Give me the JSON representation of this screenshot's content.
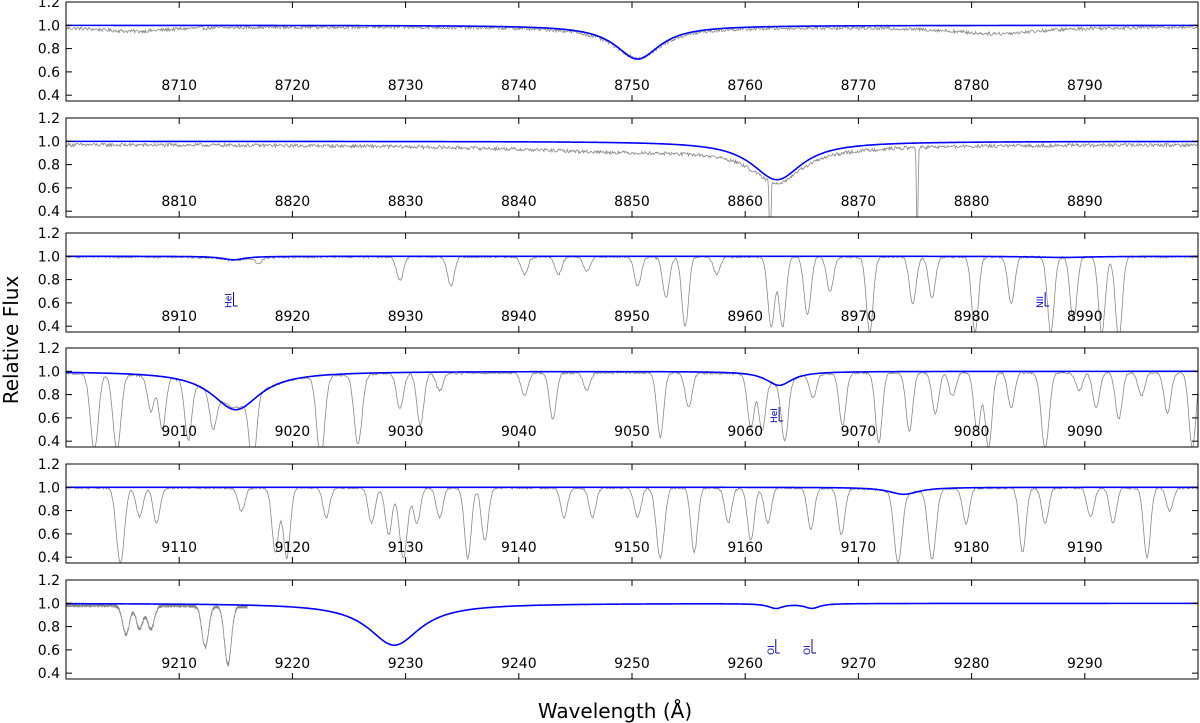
{
  "chart_data": {
    "type": "line",
    "xlabel": "Wavelength (Å)",
    "ylabel": "Relative Flux",
    "ylim": [
      0.35,
      1.2
    ],
    "yticks": [
      0.4,
      0.6,
      0.8,
      1.0,
      1.2
    ],
    "colors": {
      "model": "#0000ff",
      "observed": "#888888",
      "label": "#0000cc"
    },
    "panels": [
      {
        "xlim": [
          8700,
          8800
        ],
        "xticks": [
          8710,
          8720,
          8730,
          8740,
          8750,
          8760,
          8770,
          8780,
          8790
        ],
        "model_lines": [
          {
            "center": 8750.5,
            "depth": 0.29,
            "width": 2.4
          }
        ],
        "observed": {
          "broad": [
            {
              "center": 8750.5,
              "depth": 0.27,
              "width": 2.6
            },
            {
              "center": 8782,
              "depth": 0.06,
              "width": 5
            },
            {
              "center": 8706,
              "depth": 0.04,
              "width": 4
            }
          ],
          "narrow": [],
          "noise": 0.015,
          "offset": -0.02
        },
        "line_labels": []
      },
      {
        "xlim": [
          8800,
          8900
        ],
        "xticks": [
          8810,
          8820,
          8830,
          8840,
          8850,
          8860,
          8870,
          8880,
          8890
        ],
        "model_lines": [
          {
            "center": 8862.8,
            "depth": 0.33,
            "width": 2.7
          }
        ],
        "observed": {
          "broad": [
            {
              "center": 8862.8,
              "depth": 0.3,
              "width": 2.8
            },
            {
              "center": 8850,
              "depth": 0.06,
              "width": 14
            }
          ],
          "narrow": [
            {
              "center": 8862.2,
              "depth": 0.75,
              "width": 0.06
            },
            {
              "center": 8875.2,
              "depth": 0.9,
              "width": 0.06
            }
          ],
          "noise": 0.015,
          "offset": -0.05
        },
        "line_labels": []
      },
      {
        "xlim": [
          8900,
          9000
        ],
        "xticks": [
          8910,
          8920,
          8930,
          8940,
          8950,
          8960,
          8970,
          8980,
          8990
        ],
        "model_lines": [
          {
            "center": 8914.8,
            "depth": 0.03,
            "width": 1.2
          },
          {
            "center": 8988,
            "depth": 0.01,
            "width": 3
          }
        ],
        "observed": {
          "broad": [
            {
              "center": 8914.8,
              "depth": 0.03,
              "width": 1.2
            }
          ],
          "narrow": [
            {
              "center": 8929.5,
              "depth": 0.2,
              "width": 0.3
            },
            {
              "center": 8934,
              "depth": 0.25,
              "width": 0.3
            },
            {
              "center": 8940.5,
              "depth": 0.15,
              "width": 0.3
            },
            {
              "center": 8943.5,
              "depth": 0.15,
              "width": 0.3
            },
            {
              "center": 8946,
              "depth": 0.12,
              "width": 0.3
            },
            {
              "center": 8950.5,
              "depth": 0.25,
              "width": 0.3
            },
            {
              "center": 8953,
              "depth": 0.35,
              "width": 0.3
            },
            {
              "center": 8954.7,
              "depth": 0.6,
              "width": 0.3
            },
            {
              "center": 8957.5,
              "depth": 0.15,
              "width": 0.3
            },
            {
              "center": 8962.3,
              "depth": 0.6,
              "width": 0.3
            },
            {
              "center": 8963.3,
              "depth": 0.6,
              "width": 0.3
            },
            {
              "center": 8965.5,
              "depth": 0.5,
              "width": 0.3
            },
            {
              "center": 8967.5,
              "depth": 0.3,
              "width": 0.3
            },
            {
              "center": 8971,
              "depth": 0.65,
              "width": 0.3
            },
            {
              "center": 8974.8,
              "depth": 0.4,
              "width": 0.3
            },
            {
              "center": 8976.5,
              "depth": 0.35,
              "width": 0.3
            },
            {
              "center": 8980.3,
              "depth": 0.65,
              "width": 0.3
            },
            {
              "center": 8983.5,
              "depth": 0.4,
              "width": 0.3
            },
            {
              "center": 8987,
              "depth": 0.65,
              "width": 0.3
            },
            {
              "center": 8989,
              "depth": 0.55,
              "width": 0.3
            },
            {
              "center": 8991.5,
              "depth": 0.65,
              "width": 0.3
            },
            {
              "center": 8993,
              "depth": 0.7,
              "width": 0.3
            },
            {
              "center": 8917,
              "depth": 0.05,
              "width": 0.3
            }
          ],
          "noise": 0.01,
          "offset": -0.01
        },
        "line_labels": [
          {
            "x": 8914.8,
            "text": "HeI"
          },
          {
            "x": 8986.5,
            "text": "NII"
          }
        ]
      },
      {
        "xlim": [
          9000,
          9100
        ],
        "xticks": [
          9010,
          9020,
          9030,
          9040,
          9050,
          9060,
          9070,
          9080,
          9090
        ],
        "model_lines": [
          {
            "center": 9015,
            "depth": 0.33,
            "width": 2.6
          },
          {
            "center": 9063,
            "depth": 0.12,
            "width": 1.4
          }
        ],
        "observed": {
          "broad": [
            {
              "center": 9015,
              "depth": 0.3,
              "width": 2.6
            },
            {
              "center": 9063,
              "depth": 0.1,
              "width": 1.4
            }
          ],
          "narrow": [
            {
              "center": 9002.5,
              "depth": 0.65,
              "width": 0.35
            },
            {
              "center": 9004.5,
              "depth": 0.65,
              "width": 0.35
            },
            {
              "center": 9007.5,
              "depth": 0.3,
              "width": 0.3
            },
            {
              "center": 9008.5,
              "depth": 0.45,
              "width": 0.3
            },
            {
              "center": 9010.8,
              "depth": 0.5,
              "width": 0.3
            },
            {
              "center": 9013,
              "depth": 0.3,
              "width": 0.3
            },
            {
              "center": 9016.5,
              "depth": 0.6,
              "width": 0.3
            },
            {
              "center": 9022.5,
              "depth": 0.7,
              "width": 0.35
            },
            {
              "center": 9025.8,
              "depth": 0.6,
              "width": 0.35
            },
            {
              "center": 9029.5,
              "depth": 0.3,
              "width": 0.3
            },
            {
              "center": 9031.3,
              "depth": 0.45,
              "width": 0.3
            },
            {
              "center": 9033,
              "depth": 0.15,
              "width": 0.3
            },
            {
              "center": 9040.5,
              "depth": 0.2,
              "width": 0.3
            },
            {
              "center": 9043,
              "depth": 0.4,
              "width": 0.3
            },
            {
              "center": 9046,
              "depth": 0.15,
              "width": 0.3
            },
            {
              "center": 9052.5,
              "depth": 0.55,
              "width": 0.3
            },
            {
              "center": 9055,
              "depth": 0.3,
              "width": 0.3
            },
            {
              "center": 9060.5,
              "depth": 0.45,
              "width": 0.3
            },
            {
              "center": 9061.5,
              "depth": 0.45,
              "width": 0.3
            },
            {
              "center": 9063.5,
              "depth": 0.5,
              "width": 0.3
            },
            {
              "center": 9066,
              "depth": 0.2,
              "width": 0.3
            },
            {
              "center": 9068.6,
              "depth": 0.45,
              "width": 0.3
            },
            {
              "center": 9071.8,
              "depth": 0.6,
              "width": 0.3
            },
            {
              "center": 9074.5,
              "depth": 0.5,
              "width": 0.3
            },
            {
              "center": 9076.8,
              "depth": 0.35,
              "width": 0.3
            },
            {
              "center": 9078.3,
              "depth": 0.2,
              "width": 0.3
            },
            {
              "center": 9080.5,
              "depth": 0.5,
              "width": 0.3
            },
            {
              "center": 9081.5,
              "depth": 0.65,
              "width": 0.3
            },
            {
              "center": 9083.5,
              "depth": 0.3,
              "width": 0.3
            },
            {
              "center": 9086.5,
              "depth": 0.65,
              "width": 0.35
            },
            {
              "center": 9089.5,
              "depth": 0.15,
              "width": 0.3
            },
            {
              "center": 9091,
              "depth": 0.3,
              "width": 0.3
            },
            {
              "center": 9093,
              "depth": 0.4,
              "width": 0.3
            },
            {
              "center": 9095,
              "depth": 0.2,
              "width": 0.3
            },
            {
              "center": 9097.3,
              "depth": 0.35,
              "width": 0.3
            },
            {
              "center": 9099.5,
              "depth": 0.65,
              "width": 0.3
            }
          ],
          "noise": 0.01,
          "offset": -0.02
        },
        "line_labels": [
          {
            "x": 9063,
            "text": "HeI"
          }
        ]
      },
      {
        "xlim": [
          9100,
          9200
        ],
        "xticks": [
          9110,
          9120,
          9130,
          9140,
          9150,
          9160,
          9170,
          9180,
          9190
        ],
        "model_lines": [
          {
            "center": 9174,
            "depth": 0.06,
            "width": 1.6
          }
        ],
        "observed": {
          "broad": [
            {
              "center": 9174,
              "depth": 0.05,
              "width": 1.6
            }
          ],
          "narrow": [
            {
              "center": 9104.8,
              "depth": 0.65,
              "width": 0.35
            },
            {
              "center": 9106.5,
              "depth": 0.25,
              "width": 0.3
            },
            {
              "center": 9108,
              "depth": 0.3,
              "width": 0.3
            },
            {
              "center": 9115.5,
              "depth": 0.2,
              "width": 0.3
            },
            {
              "center": 9118.5,
              "depth": 0.55,
              "width": 0.3
            },
            {
              "center": 9119.5,
              "depth": 0.6,
              "width": 0.3
            },
            {
              "center": 9123,
              "depth": 0.25,
              "width": 0.3
            },
            {
              "center": 9127,
              "depth": 0.3,
              "width": 0.3
            },
            {
              "center": 9128.5,
              "depth": 0.4,
              "width": 0.3
            },
            {
              "center": 9129.8,
              "depth": 0.6,
              "width": 0.35
            },
            {
              "center": 9131,
              "depth": 0.3,
              "width": 0.3
            },
            {
              "center": 9133,
              "depth": 0.25,
              "width": 0.3
            },
            {
              "center": 9135.5,
              "depth": 0.6,
              "width": 0.3
            },
            {
              "center": 9137,
              "depth": 0.45,
              "width": 0.3
            },
            {
              "center": 9144,
              "depth": 0.25,
              "width": 0.3
            },
            {
              "center": 9146.5,
              "depth": 0.25,
              "width": 0.3
            },
            {
              "center": 9150.5,
              "depth": 0.25,
              "width": 0.3
            },
            {
              "center": 9152.5,
              "depth": 0.6,
              "width": 0.35
            },
            {
              "center": 9155.5,
              "depth": 0.55,
              "width": 0.3
            },
            {
              "center": 9158.5,
              "depth": 0.3,
              "width": 0.3
            },
            {
              "center": 9160.5,
              "depth": 0.45,
              "width": 0.3
            },
            {
              "center": 9162,
              "depth": 0.3,
              "width": 0.3
            },
            {
              "center": 9165.8,
              "depth": 0.35,
              "width": 0.3
            },
            {
              "center": 9168.5,
              "depth": 0.4,
              "width": 0.3
            },
            {
              "center": 9173.5,
              "depth": 0.6,
              "width": 0.35
            },
            {
              "center": 9176.5,
              "depth": 0.6,
              "width": 0.35
            },
            {
              "center": 9179.5,
              "depth": 0.3,
              "width": 0.3
            },
            {
              "center": 9184.5,
              "depth": 0.55,
              "width": 0.3
            },
            {
              "center": 9186.5,
              "depth": 0.3,
              "width": 0.3
            },
            {
              "center": 9190.5,
              "depth": 0.25,
              "width": 0.3
            },
            {
              "center": 9192.5,
              "depth": 0.3,
              "width": 0.3
            },
            {
              "center": 9195.5,
              "depth": 0.6,
              "width": 0.3
            },
            {
              "center": 9197.5,
              "depth": 0.2,
              "width": 0.3
            }
          ],
          "noise": 0.01,
          "offset": -0.01
        },
        "line_labels": []
      },
      {
        "xlim": [
          9200,
          9300
        ],
        "xticks": [
          9210,
          9220,
          9230,
          9240,
          9250,
          9260,
          9270,
          9280,
          9290
        ],
        "model_lines": [
          {
            "center": 9229,
            "depth": 0.36,
            "width": 2.8
          },
          {
            "center": 9262.7,
            "depth": 0.04,
            "width": 0.8
          },
          {
            "center": 9265.9,
            "depth": 0.04,
            "width": 0.8
          }
        ],
        "observed": {
          "xmax": 9216,
          "broad": [
            {
              "center": 9229,
              "depth": 0.36,
              "width": 2.8
            }
          ],
          "narrow": [
            {
              "center": 9205.3,
              "depth": 0.25,
              "width": 0.3
            },
            {
              "center": 9206.5,
              "depth": 0.2,
              "width": 0.3
            },
            {
              "center": 9207.5,
              "depth": 0.2,
              "width": 0.3
            },
            {
              "center": 9212.3,
              "depth": 0.35,
              "width": 0.3
            },
            {
              "center": 9214.3,
              "depth": 0.5,
              "width": 0.3
            }
          ],
          "noise": 0.015,
          "offset": -0.03
        },
        "line_labels": [
          {
            "x": 9262.7,
            "text": "OI"
          },
          {
            "x": 9265.9,
            "text": "OI"
          }
        ]
      }
    ]
  }
}
